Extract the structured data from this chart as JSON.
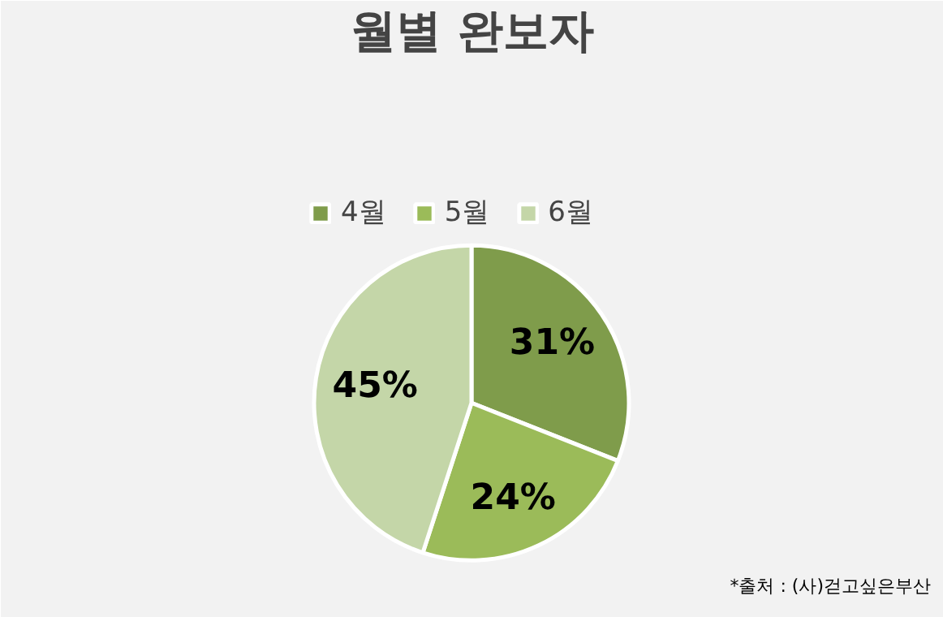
{
  "chart_data": {
    "type": "pie",
    "title": "월별 완보자",
    "categories": [
      "4월",
      "5월",
      "6월"
    ],
    "values": [
      31,
      24,
      45
    ],
    "colors": [
      "#7f9c4b",
      "#9bbb59",
      "#c4d6a8"
    ],
    "value_labels": [
      "31%",
      "24%",
      "45%"
    ],
    "legend": "top",
    "annotations": [
      "*출처 : (사)걷고싶은부산"
    ]
  }
}
